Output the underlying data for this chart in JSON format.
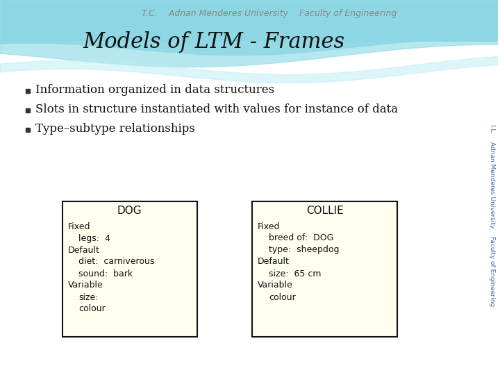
{
  "title": "Models of LTM - Frames",
  "title_fontsize": 22,
  "bg_color": "#ffffff",
  "header_text": "T.C.    Adnan Menderes University    Faculty of Engineering",
  "bullet_points": [
    "Information organized in data structures",
    "Slots in structure instantiated with values for instance of data",
    "Type–subtype relationships"
  ],
  "bullet_fontsize": 12,
  "box_bg": "#fffff0",
  "box_border": "#111111",
  "dog_title": "DOG",
  "dog_content": [
    [
      "Fixed",
      ""
    ],
    [
      "",
      "legs:  4"
    ],
    [
      "Default",
      ""
    ],
    [
      "",
      "diet:  carniverous"
    ],
    [
      "",
      "sound:  bark"
    ],
    [
      "Variable",
      ""
    ],
    [
      "",
      "size:"
    ],
    [
      "",
      "colour"
    ]
  ],
  "collie_title": "COLLIE",
  "collie_content": [
    [
      "Fixed",
      ""
    ],
    [
      "",
      "breed of:  DOG"
    ],
    [
      "",
      "type:  sheepdog"
    ],
    [
      "Default",
      ""
    ],
    [
      "",
      "size:  65 cm"
    ],
    [
      "Variable",
      ""
    ],
    [
      "",
      "colour"
    ]
  ],
  "side_text": "I.L.    Adnan Menderes University    Faculty of Engineering",
  "wave_top_color": "#7dd8e8",
  "wave_mid_color": "#aae4ee",
  "wave_bot_color": "#cceef5",
  "header_band_color": "#55c8dc"
}
